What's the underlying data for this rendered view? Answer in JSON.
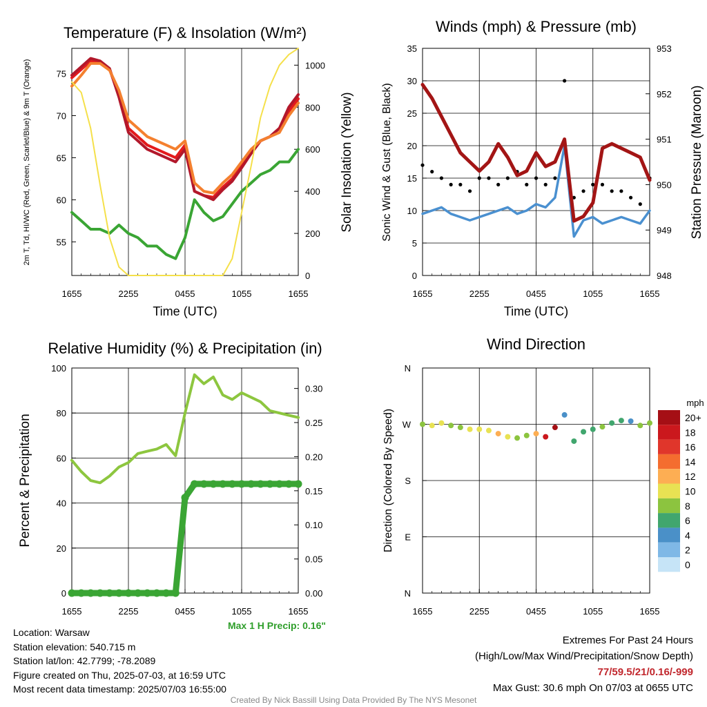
{
  "chart_data": [
    {
      "type": "line",
      "title": "Temperature (F) & Insolation (W/m²)",
      "xlabel": "Time (UTC)",
      "ylabel": "2m T, Td, HI/WC (Red, Green, Scarlet/Blue) & 9m T (Orange)",
      "ylabel_right": "Solar Insolation (Yellow)",
      "ylim": [
        51,
        78
      ],
      "ylim_right": [
        0,
        1080
      ],
      "x_ticks": [
        "1655",
        "2255",
        "0455",
        "1055",
        "1655"
      ],
      "y_ticks": [
        55,
        60,
        65,
        70,
        75
      ],
      "y_ticks_right": [
        0,
        200,
        400,
        600,
        800,
        1000
      ],
      "x": [
        0,
        1,
        2,
        3,
        4,
        5,
        6,
        7,
        8,
        9,
        10,
        11,
        12,
        13,
        14,
        15,
        16,
        17,
        18,
        19,
        20,
        21,
        22,
        23,
        24
      ],
      "series": [
        {
          "name": "2m T",
          "color": "#e31a1c",
          "values": [
            74.5,
            75.5,
            76.5,
            76.3,
            75.5,
            72.5,
            68.5,
            67.5,
            66.5,
            66.0,
            65.5,
            65.0,
            66.5,
            61.0,
            60.5,
            60.3,
            61.5,
            62.5,
            64.0,
            65.5,
            67.0,
            67.5,
            68.5,
            70.5,
            72.0
          ]
        },
        {
          "name": "HI/WC",
          "color": "#b2182b",
          "values": [
            74.8,
            75.8,
            76.8,
            76.5,
            75.6,
            72.2,
            68.0,
            67.0,
            66.0,
            65.5,
            65.0,
            64.5,
            66.0,
            61.0,
            60.5,
            60.0,
            61.2,
            62.2,
            63.8,
            65.5,
            67.0,
            67.5,
            68.5,
            71.0,
            72.5
          ]
        },
        {
          "name": "9m T",
          "color": "#f4802f",
          "values": [
            73.5,
            74.8,
            76.2,
            76.2,
            75.4,
            73.0,
            69.5,
            68.5,
            67.5,
            67.0,
            66.5,
            66.0,
            67.0,
            62.0,
            61.0,
            60.8,
            62.0,
            63.0,
            64.5,
            66.0,
            67.0,
            67.5,
            68.0,
            70.0,
            71.5
          ]
        },
        {
          "name": "Td",
          "color": "#3aa534",
          "values": [
            58.5,
            57.5,
            56.5,
            56.5,
            56.0,
            57.0,
            56.0,
            55.5,
            54.5,
            54.5,
            53.5,
            53.0,
            55.5,
            60.0,
            58.5,
            57.5,
            58.0,
            59.5,
            61.0,
            62.0,
            63.0,
            63.5,
            64.5,
            64.5,
            66.0
          ]
        },
        {
          "name": "Solar Insolation",
          "color": "#f5e04a",
          "axis": "right",
          "values": [
            920,
            870,
            700,
            430,
            180,
            40,
            0,
            0,
            0,
            0,
            0,
            0,
            0,
            0,
            0,
            0,
            0,
            80,
            300,
            520,
            750,
            900,
            1000,
            1050,
            1080
          ]
        }
      ]
    },
    {
      "type": "line",
      "title": "Winds (mph) & Pressure (mb)",
      "xlabel": "Time (UTC)",
      "ylabel": "Sonic Wind & Gust (Blue, Black)",
      "ylabel_right": "Station Pressure (Maroon)",
      "ylim": [
        0,
        35
      ],
      "ylim_right": [
        948,
        953
      ],
      "x_ticks": [
        "1655",
        "2255",
        "0455",
        "1055",
        "1655"
      ],
      "y_ticks": [
        0,
        5,
        10,
        15,
        20,
        25,
        30,
        35
      ],
      "y_ticks_right": [
        948,
        949,
        950,
        951,
        952,
        953
      ],
      "x": [
        0,
        1,
        2,
        3,
        4,
        5,
        6,
        7,
        8,
        9,
        10,
        11,
        12,
        13,
        14,
        15,
        16,
        17,
        18,
        19,
        20,
        21,
        22,
        23,
        24
      ],
      "series": [
        {
          "name": "Sonic Wind",
          "color": "#4a90d0",
          "values": [
            9.5,
            10.0,
            10.5,
            9.5,
            9.0,
            8.5,
            9.0,
            9.5,
            10.0,
            10.5,
            9.5,
            10.0,
            11.0,
            10.5,
            12.0,
            20.0,
            6.0,
            8.5,
            9.0,
            8.0,
            8.5,
            9.0,
            8.5,
            8.0,
            10.0
          ]
        },
        {
          "name": "Gust",
          "color": "#000000",
          "values": [
            17,
            16,
            15,
            14,
            14,
            13,
            15,
            15,
            14,
            15,
            16,
            14,
            15,
            14,
            15,
            30,
            12,
            13,
            14,
            14,
            13,
            13,
            12,
            11,
            15
          ]
        },
        {
          "name": "Station Pressure",
          "color": "#a31515",
          "axis": "right",
          "values": [
            952.2,
            951.9,
            951.5,
            951.1,
            950.7,
            950.5,
            950.3,
            950.5,
            950.9,
            950.6,
            950.2,
            950.3,
            950.7,
            950.4,
            950.5,
            951.0,
            949.2,
            949.3,
            949.6,
            950.8,
            950.9,
            950.8,
            950.7,
            950.6,
            950.1
          ]
        }
      ]
    },
    {
      "type": "line",
      "title": "Relative Humidity (%) & Precipitation (in)",
      "ylabel": "Percent & Precipitation",
      "ylim": [
        0,
        100
      ],
      "ylim_right": [
        0,
        0.33
      ],
      "x_ticks": [
        "1655",
        "2255",
        "0455",
        "1055",
        "1655"
      ],
      "y_ticks": [
        0,
        20,
        40,
        60,
        80,
        100
      ],
      "y_ticks_right": [
        "0.00",
        "0.05",
        "0.10",
        "0.15",
        "0.20",
        "0.25",
        "0.30"
      ],
      "x": [
        0,
        1,
        2,
        3,
        4,
        5,
        6,
        7,
        8,
        9,
        10,
        11,
        12,
        13,
        14,
        15,
        16,
        17,
        18,
        19,
        20,
        21,
        22,
        23,
        24
      ],
      "series": [
        {
          "name": "Relative Humidity",
          "color": "#8dc63f",
          "values": [
            59,
            54,
            50,
            49,
            52,
            56,
            58,
            62,
            63,
            64,
            66,
            61,
            80,
            97,
            93,
            96,
            88,
            86,
            89,
            87,
            85,
            81,
            80,
            79,
            78
          ]
        },
        {
          "name": "Precipitation",
          "color": "#3aa534",
          "axis": "right",
          "values": [
            0,
            0,
            0,
            0,
            0,
            0,
            0,
            0,
            0,
            0,
            0,
            0,
            0.14,
            0.16,
            0.16,
            0.16,
            0.16,
            0.16,
            0.16,
            0.16,
            0.16,
            0.16,
            0.16,
            0.16,
            0.16
          ]
        }
      ],
      "annotation": "Max 1 H Precip: 0.16\""
    },
    {
      "type": "scatter",
      "title": "Wind Direction",
      "ylabel": "Direction (Colored By Speed)",
      "y_ticks": [
        "N",
        "W",
        "S",
        "E",
        "N"
      ],
      "x_ticks": [
        "1655",
        "2255",
        "0455",
        "1055",
        "1655"
      ],
      "ylim": [
        360,
        0
      ],
      "x": [
        0,
        1,
        2,
        3,
        4,
        5,
        6,
        7,
        8,
        9,
        10,
        11,
        12,
        13,
        14,
        15,
        16,
        17,
        18,
        19,
        20,
        21,
        22,
        23,
        24
      ],
      "directions": [
        270,
        268,
        272,
        268,
        265,
        262,
        262,
        260,
        255,
        250,
        248,
        252,
        255,
        250,
        265,
        285,
        243,
        258,
        262,
        266,
        272,
        276,
        275,
        268,
        272
      ],
      "speeds": [
        8,
        10,
        11,
        9,
        8,
        10,
        10,
        11,
        12,
        10,
        9,
        8,
        12,
        19,
        20,
        4,
        6,
        6,
        7,
        8,
        7,
        6,
        5,
        9,
        8
      ],
      "legend_title": "mph",
      "legend": [
        {
          "label": "20+",
          "color": "#a50f15"
        },
        {
          "label": "18",
          "color": "#cb181d"
        },
        {
          "label": "16",
          "color": "#e0362b"
        },
        {
          "label": "14",
          "color": "#f46d2f"
        },
        {
          "label": "12",
          "color": "#fdae53"
        },
        {
          "label": "10",
          "color": "#e8e253"
        },
        {
          "label": "8",
          "color": "#8cc43f"
        },
        {
          "label": "6",
          "color": "#41a66e"
        },
        {
          "label": "4",
          "color": "#4a90c8"
        },
        {
          "label": "2",
          "color": "#7fb8e6"
        },
        {
          "label": "0",
          "color": "#c6e4f7"
        }
      ]
    }
  ],
  "info": {
    "location": "Location: Warsaw",
    "elevation": "Station elevation: 540.715 m",
    "latlon": "Station lat/lon: 42.7799; -78.2089",
    "created": "Figure created on Thu, 2025-07-03, at 16:59 UTC",
    "recent": "Most recent data timestamp: 2025/07/03 16:55:00"
  },
  "extremes": {
    "line1": "Extremes For Past 24 Hours",
    "line2": "(High/Low/Max Wind/Precipitation/Snow Depth)",
    "values": "77/59.5/21/0.16/-999",
    "gust": "Max Gust: 30.6 mph On 07/03 at 0655 UTC"
  },
  "credit": "Created By Nick Bassill Using Data Provided By The NYS Mesonet"
}
